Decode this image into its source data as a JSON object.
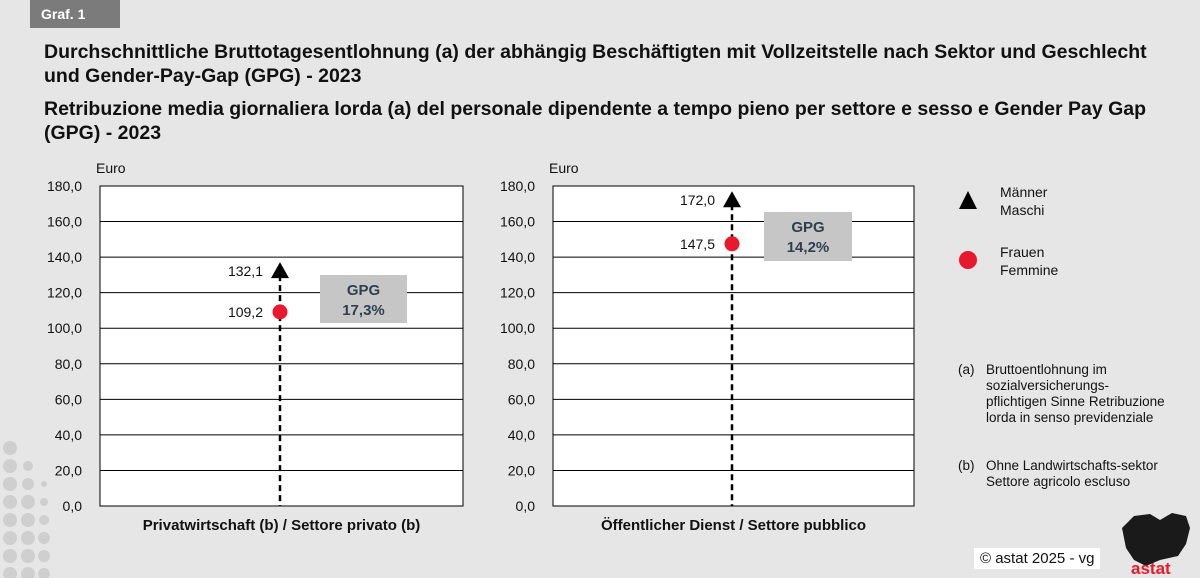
{
  "badge": "Graf. 1",
  "title_de": "Durchschnittliche Bruttotagesentlohnung (a) der abhängig Beschäftigten mit Vollzeitstelle nach Sektor und Geschlecht und Gender-Pay-Gap (GPG) - 2023",
  "title_it": "Retribuzione media giornaliera lorda (a) del personale dipendente a tempo pieno per settore e sesso e Gender Pay Gap (GPG) - 2023",
  "legend": {
    "men_de": "Männer",
    "men_it": "Maschi",
    "women_de": "Frauen",
    "women_it": "Femmine"
  },
  "notes": [
    {
      "key": "(a)",
      "text": "Bruttoentlohnung im sozialversicherungs-pflichtigen Sinne Retribuzione lorda in senso previdenziale"
    },
    {
      "key": "(b)",
      "text": "Ohne Landwirtschafts-sektor Settore agricolo escluso"
    }
  ],
  "copyright": "©  astat 2025 - vg",
  "logo_text": "astat",
  "colors": {
    "background": "#e6e6e6",
    "plot_bg": "#ffffff",
    "men_marker": "#000000",
    "women_marker": "#e8192c",
    "gpg_box": "#c6c6c6",
    "gpg_text": "#2f3f4f"
  },
  "chart_data": [
    {
      "type": "scatter",
      "title": "",
      "xlabel": "Privatwirtschaft (b) / Settore privato (b)",
      "ylabel": "Euro",
      "ylim": [
        0,
        180
      ],
      "yticks": [
        0,
        20,
        40,
        60,
        80,
        100,
        120,
        140,
        160,
        180
      ],
      "ytick_labels": [
        "0,0",
        "20,0",
        "40,0",
        "60,0",
        "80,0",
        "100,0",
        "120,0",
        "140,0",
        "160,0",
        "180,0"
      ],
      "series": [
        {
          "name": "Männer / Maschi",
          "values": [
            132.1
          ],
          "labels": [
            "132,1"
          ]
        },
        {
          "name": "Frauen / Femmine",
          "values": [
            109.2
          ],
          "labels": [
            "109,2"
          ]
        }
      ],
      "gpg": {
        "label": "GPG",
        "value": "17,3%"
      }
    },
    {
      "type": "scatter",
      "title": "",
      "xlabel": "Öffentlicher Dienst / Settore pubblico",
      "ylabel": "Euro",
      "ylim": [
        0,
        180
      ],
      "yticks": [
        0,
        20,
        40,
        60,
        80,
        100,
        120,
        140,
        160,
        180
      ],
      "ytick_labels": [
        "0,0",
        "20,0",
        "40,0",
        "60,0",
        "80,0",
        "100,0",
        "120,0",
        "140,0",
        "160,0",
        "180,0"
      ],
      "series": [
        {
          "name": "Männer / Maschi",
          "values": [
            172.0
          ],
          "labels": [
            "172,0"
          ]
        },
        {
          "name": "Frauen / Femmine",
          "values": [
            147.5
          ],
          "labels": [
            "147,5"
          ]
        }
      ],
      "gpg": {
        "label": "GPG",
        "value": "14,2%"
      }
    }
  ]
}
